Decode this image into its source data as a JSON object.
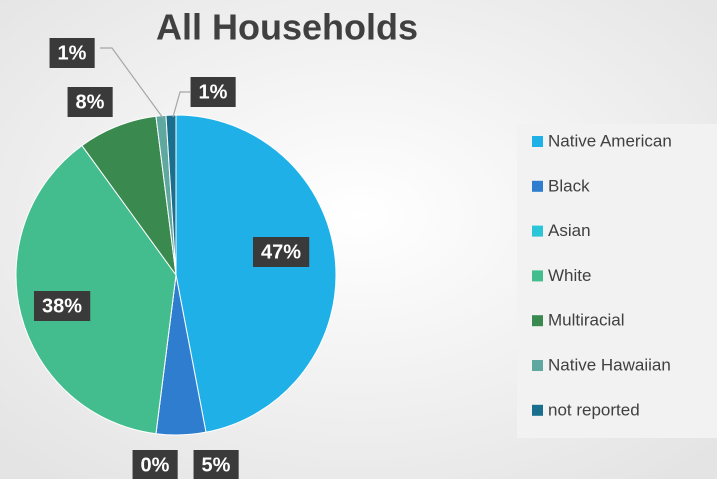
{
  "chart_data": {
    "type": "pie",
    "title": "All Households",
    "categories": [
      "Native American",
      "Black",
      "Asian",
      "White",
      "Multiracial",
      "Native Hawaiian",
      "not reported"
    ],
    "values": [
      47,
      5,
      0,
      38,
      8,
      1,
      1
    ],
    "value_labels": [
      "47%",
      "5%",
      "0%",
      "38%",
      "8%",
      "1%",
      "1%"
    ],
    "colors": [
      "#1fb0e8",
      "#2e7dcf",
      "#2bc5d8",
      "#44bd8e",
      "#3a8a50",
      "#5fa8a0",
      "#1a6f8f"
    ],
    "legend": "right"
  }
}
